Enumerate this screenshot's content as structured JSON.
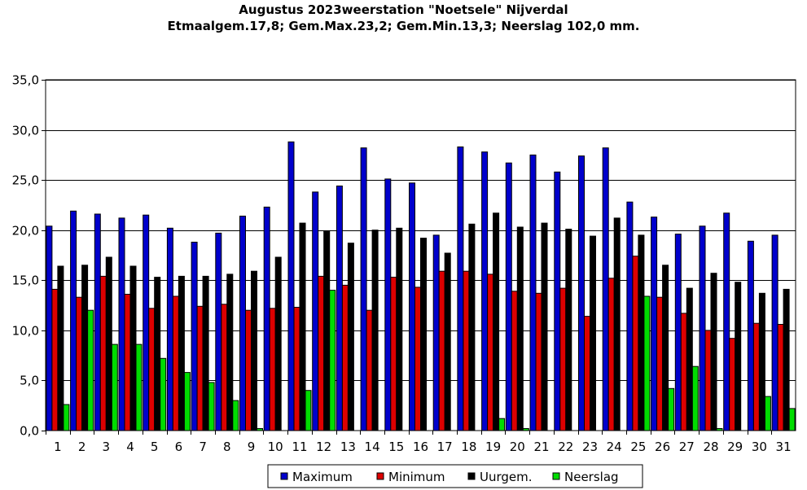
{
  "chart_data": {
    "type": "bar",
    "title": "Augustus 2023weerstation \"Noetsele\" Nijverdal",
    "subtitle": "Etmaalgem.17,8; Gem.Max.23,2;  Gem.Min.13,3; Neerslag 102,0 mm.",
    "xlabel": "",
    "ylabel": "",
    "ylim": [
      0,
      35
    ],
    "yticks": [
      "0,0",
      "5,0",
      "10,0",
      "15,0",
      "20,0",
      "25,0",
      "30,0",
      "35,0"
    ],
    "grid": true,
    "legend_position": "bottom",
    "categories": [
      "1",
      "2",
      "3",
      "4",
      "5",
      "6",
      "7",
      "8",
      "9",
      "10",
      "11",
      "12",
      "13",
      "14",
      "15",
      "16",
      "17",
      "18",
      "19",
      "20",
      "21",
      "22",
      "23",
      "24",
      "25",
      "26",
      "27",
      "28",
      "29",
      "30",
      "31"
    ],
    "series": [
      {
        "name": "Maximum",
        "color": "#0000cc",
        "values": [
          20.4,
          21.9,
          21.6,
          21.2,
          21.5,
          20.2,
          18.8,
          19.7,
          21.4,
          22.3,
          28.8,
          23.8,
          24.4,
          28.2,
          25.1,
          24.7,
          19.5,
          28.3,
          27.8,
          26.7,
          27.5,
          25.8,
          27.4,
          28.2,
          22.8,
          21.3,
          19.6,
          20.4,
          21.7,
          18.9,
          19.5
        ]
      },
      {
        "name": "Minimum",
        "color": "#dd0000",
        "values": [
          14.1,
          13.3,
          15.4,
          13.6,
          12.2,
          13.4,
          12.4,
          12.6,
          12.0,
          12.2,
          12.3,
          15.4,
          14.5,
          12.0,
          15.3,
          14.3,
          15.9,
          15.9,
          15.6,
          13.9,
          13.7,
          14.2,
          11.4,
          15.2,
          17.4,
          13.3,
          11.7,
          10.0,
          9.2,
          10.7,
          10.6
        ]
      },
      {
        "name": "Uurgem.",
        "color": "#000000",
        "values": [
          16.4,
          16.5,
          17.3,
          16.4,
          15.3,
          15.4,
          15.4,
          15.6,
          15.9,
          17.3,
          20.7,
          19.9,
          18.7,
          20.0,
          20.2,
          19.2,
          17.7,
          20.6,
          21.7,
          20.3,
          20.7,
          20.1,
          19.4,
          21.2,
          19.5,
          16.5,
          14.2,
          15.7,
          14.8,
          13.7,
          14.1
        ]
      },
      {
        "name": "Neerslag",
        "color": "#00dd00",
        "values": [
          2.6,
          12.0,
          8.6,
          8.6,
          7.2,
          5.8,
          4.8,
          3.0,
          0.2,
          0.0,
          4.0,
          14.0,
          0.0,
          0.0,
          0.0,
          0.0,
          0.0,
          0.0,
          1.2,
          0.2,
          0.0,
          0.0,
          0.0,
          0.0,
          13.4,
          4.2,
          6.4,
          0.2,
          0.0,
          3.4,
          2.2
        ]
      }
    ]
  }
}
